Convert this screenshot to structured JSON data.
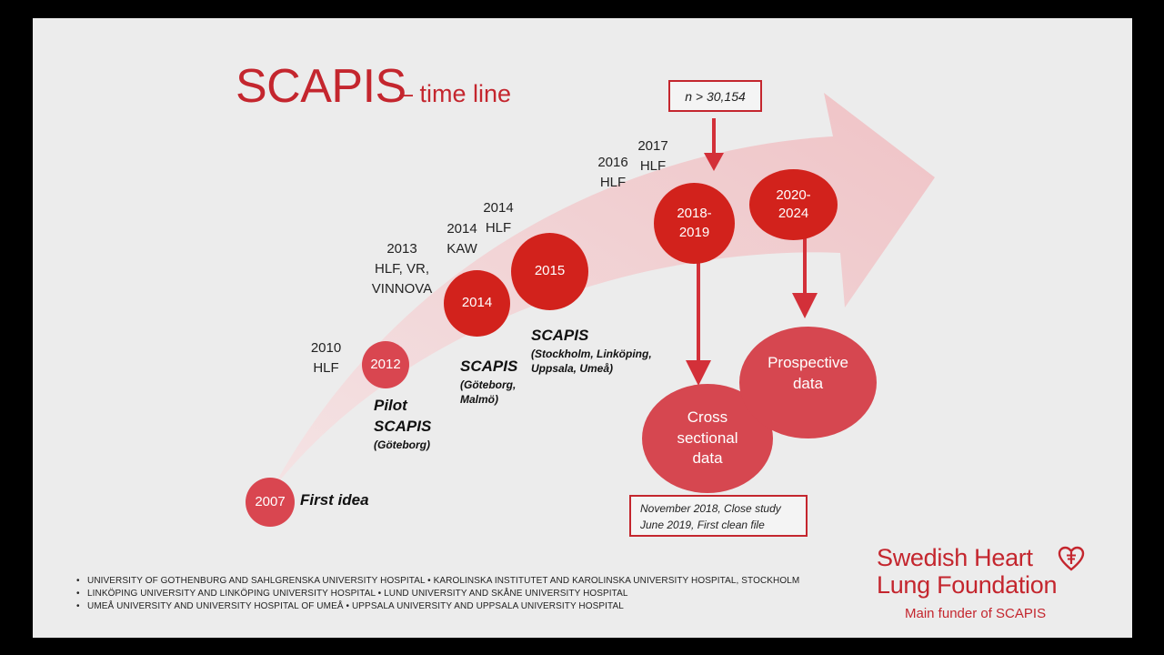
{
  "title": {
    "main": "SCAPIS",
    "sub": "– time line"
  },
  "milestones": {
    "y2007": "2007",
    "y2012": "2012",
    "y2014": "2014",
    "y2015": "2015",
    "y2018": [
      "2018-",
      "2019"
    ],
    "y2020": [
      "2020-",
      "2024"
    ]
  },
  "funding_labels": {
    "f2010": [
      "2010",
      "HLF"
    ],
    "f2013": [
      "2013",
      "HLF, VR,",
      "VINNOVA"
    ],
    "f2014kaw": [
      "2014",
      "KAW"
    ],
    "f2014hlf": [
      "2014",
      "HLF"
    ],
    "f2016": [
      "2016",
      "HLF"
    ],
    "f2017": [
      "2017",
      "HLF"
    ]
  },
  "stages": {
    "first_idea": "First idea",
    "pilot": {
      "line1": "Pilot",
      "line2": "SCAPIS",
      "location": "(Göteborg)"
    },
    "scapis_gm": {
      "name": "SCAPIS",
      "loc1": "(Göteborg,",
      "loc2": "Malmö)"
    },
    "scapis_4": {
      "name": "SCAPIS",
      "loc1": "(Stockholm, Linköping,",
      "loc2": "Uppsala, Umeå)"
    }
  },
  "sample_size": "n > 30,154",
  "outcomes": {
    "cross_sectional": [
      "Cross",
      "sectional",
      "data"
    ],
    "prospective": [
      "Prospective",
      "data"
    ]
  },
  "study_notes": [
    "November 2018, Close study",
    "June 2019, First clean file"
  ],
  "partners": [
    "UNIVERSITY OF GOTHENBURG AND SAHLGRENSKA UNIVERSITY HOSPITAL  •  KAROLINSKA INSTITUTET AND KAROLINSKA UNIVERSITY HOSPITAL, STOCKHOLM",
    "LINKÖPING UNIVERSITY AND LINKÖPING UNIVERSITY HOSPITAL  •  LUND UNIVERSITY AND SKÅNE UNIVERSITY HOSPITAL",
    "UMEÅ UNIVERSITY AND UNIVERSITY HOSPITAL OF UMEÅ  •  UPPSALA UNIVERSITY AND UPPSALA UNIVERSITY HOSPITAL"
  ],
  "logo": {
    "line1": "Swedish Heart",
    "line2": "Lung Foundation",
    "tagline": "Main funder of SCAPIS"
  },
  "colors": {
    "accent": "#c4262e",
    "circle_dark": "#d2221c",
    "circle_light": "#d94650",
    "arrow": "#f0c9cb",
    "background": "#ececec"
  }
}
